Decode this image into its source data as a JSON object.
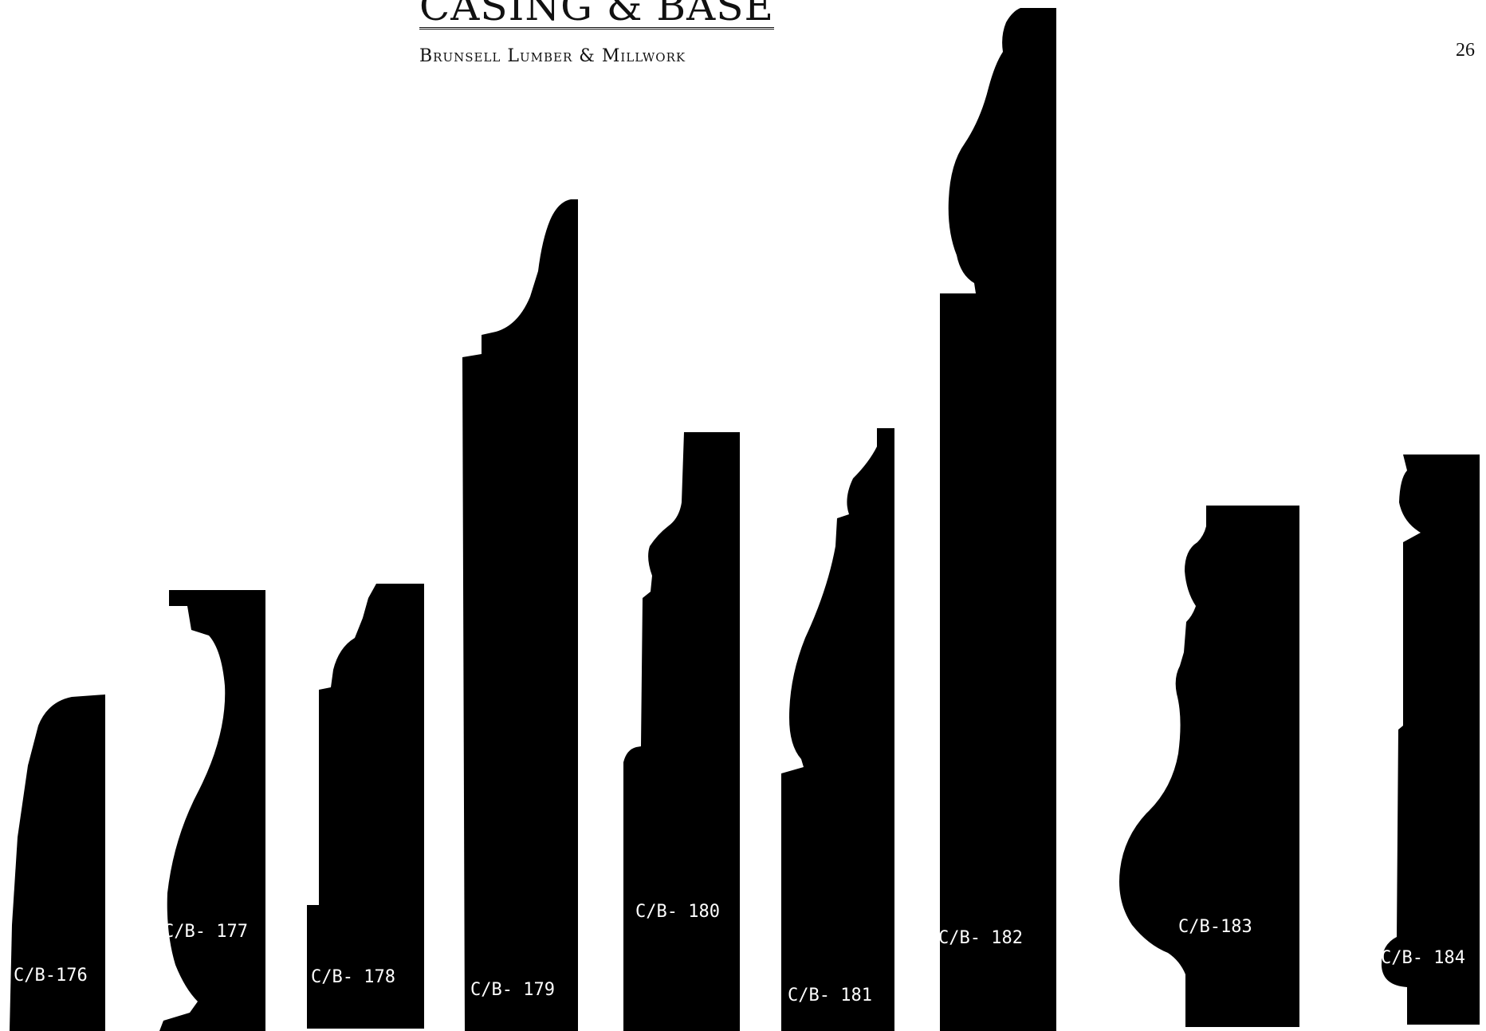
{
  "header": {
    "title": "CASING & BASE",
    "subtitle": "Brunsell Lumber & Millwork",
    "page_number": "26"
  },
  "profiles": [
    {
      "label": "C/B-176"
    },
    {
      "label": "C/B- 177"
    },
    {
      "label": "C/B- 178"
    },
    {
      "label": "C/B- 179"
    },
    {
      "label": "C/B- 180"
    },
    {
      "label": "C/B- 181"
    },
    {
      "label": "C/B- 182"
    },
    {
      "label": "C/B-183"
    },
    {
      "label": "C/B- 184"
    }
  ],
  "colors": {
    "profile_fill": "#000000",
    "background": "#ffffff"
  }
}
